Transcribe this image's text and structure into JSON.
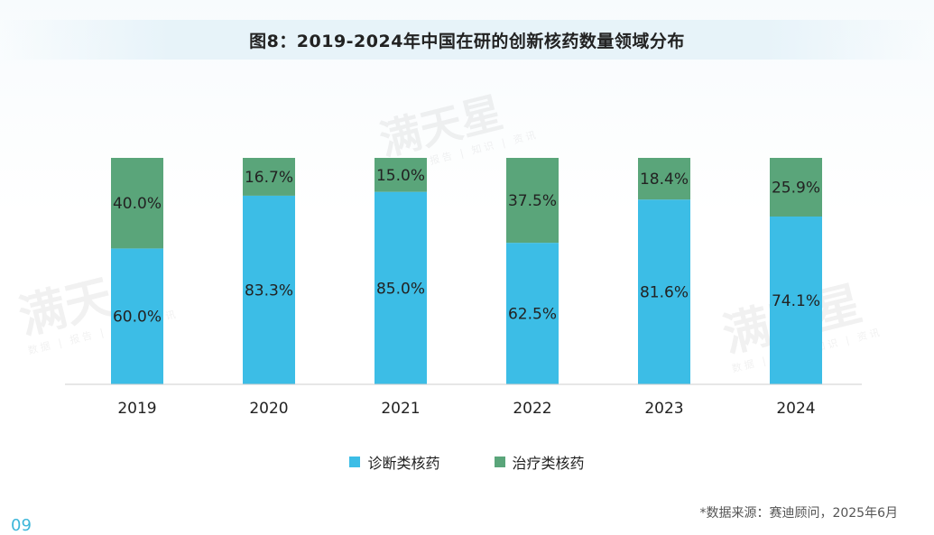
{
  "title": "图8：2019-2024年中国在研的创新核药数量领域分布",
  "page_number": "09",
  "source": "*数据来源：赛迪顾问，2025年6月",
  "watermark": {
    "text": "满天星",
    "subtext": "数据 | 报告 | 知识 | 资讯"
  },
  "colors": {
    "diagnostic": "#3cbde6",
    "therapeutic": "#5aa57a",
    "accent": "#3cb6d9"
  },
  "chart_data": {
    "type": "bar",
    "stacked": true,
    "title": "图8：2019-2024年中国在研的创新核药数量领域分布",
    "categories": [
      "2019",
      "2020",
      "2021",
      "2022",
      "2023",
      "2024"
    ],
    "series": [
      {
        "name": "诊断类核药",
        "values": [
          60.0,
          83.3,
          85.0,
          62.5,
          81.6,
          74.1
        ],
        "labels": [
          "60.0%",
          "83.3%",
          "85.0%",
          "62.5%",
          "81.6%",
          "74.1%"
        ]
      },
      {
        "name": "治疗类核药",
        "values": [
          40.0,
          16.7,
          15.0,
          37.5,
          18.4,
          25.9
        ],
        "labels": [
          "40.0%",
          "16.7%",
          "15.0%",
          "37.5%",
          "18.4%",
          "25.9%"
        ]
      }
    ],
    "ylim": [
      0,
      100
    ],
    "grid": false,
    "legend_position": "bottom"
  }
}
